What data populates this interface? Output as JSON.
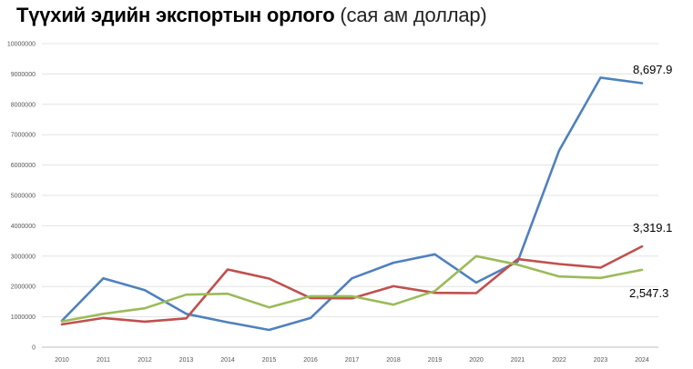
{
  "chart_data": {
    "type": "line",
    "title_main": "Түүхий эдийн экспортын орлого",
    "title_unit": "(сая ам доллар)",
    "categories": [
      "2010",
      "2011",
      "2012",
      "2013",
      "2014",
      "2015",
      "2016",
      "2017",
      "2018",
      "2019",
      "2020",
      "2021",
      "2022",
      "2023",
      "2024"
    ],
    "y_ticks": [
      "0",
      "1000000",
      "2000000",
      "3000000",
      "4000000",
      "5000000",
      "6000000",
      "7000000",
      "8000000",
      "9000000",
      "10000000"
    ],
    "ylim": [
      0,
      10000000
    ],
    "grid": true,
    "series": [
      {
        "name": "blue",
        "color": "#4f81bd",
        "values": [
          870000,
          2270000,
          1880000,
          1100000,
          820000,
          570000,
          960000,
          2270000,
          2780000,
          3060000,
          2130000,
          2820000,
          6480000,
          8880000,
          8697900
        ]
      },
      {
        "name": "red",
        "color": "#c0504d",
        "values": [
          750000,
          960000,
          840000,
          950000,
          2560000,
          2260000,
          1620000,
          1610000,
          2010000,
          1790000,
          1780000,
          2900000,
          2740000,
          2620000,
          3319100
        ]
      },
      {
        "name": "green",
        "color": "#9bbb59",
        "values": [
          850000,
          1100000,
          1280000,
          1730000,
          1760000,
          1310000,
          1680000,
          1680000,
          1400000,
          1850000,
          3000000,
          2720000,
          2330000,
          2280000,
          2547300
        ]
      }
    ],
    "annotations": [
      {
        "series": "blue",
        "label": "8,697.9"
      },
      {
        "series": "red",
        "label": "3,319.1"
      },
      {
        "series": "green",
        "label": "2,547.3"
      }
    ]
  }
}
